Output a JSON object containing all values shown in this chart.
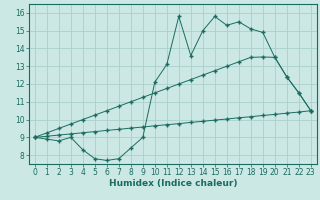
{
  "xlabel": "Humidex (Indice chaleur)",
  "ylabel": "",
  "xlim": [
    -0.5,
    23.5
  ],
  "ylim": [
    7.5,
    16.5
  ],
  "xticks": [
    0,
    1,
    2,
    3,
    4,
    5,
    6,
    7,
    8,
    9,
    10,
    11,
    12,
    13,
    14,
    15,
    16,
    17,
    18,
    19,
    20,
    21,
    22,
    23
  ],
  "yticks": [
    8,
    9,
    10,
    11,
    12,
    13,
    14,
    15,
    16
  ],
  "bg_color": "#cce8e4",
  "grid_color": "#aacfcb",
  "line_color": "#1a6b60",
  "line1_x": [
    0,
    1,
    2,
    3,
    4,
    5,
    6,
    7,
    8,
    9,
    10,
    11,
    12,
    13,
    14,
    15,
    16,
    17,
    18,
    19,
    20,
    21,
    22,
    23
  ],
  "line1_y": [
    9.0,
    8.9,
    8.8,
    9.0,
    8.3,
    7.8,
    7.7,
    7.8,
    8.4,
    9.0,
    12.1,
    13.1,
    15.8,
    13.6,
    15.0,
    15.8,
    15.3,
    15.5,
    15.1,
    14.9,
    13.5,
    12.4,
    11.5,
    10.5
  ],
  "line2_x": [
    0,
    1,
    2,
    3,
    4,
    5,
    6,
    7,
    8,
    9,
    10,
    11,
    12,
    13,
    14,
    15,
    16,
    17,
    18,
    19,
    20,
    21,
    22,
    23
  ],
  "line2_y": [
    9.0,
    9.25,
    9.5,
    9.75,
    10.0,
    10.25,
    10.5,
    10.75,
    11.0,
    11.25,
    11.5,
    11.75,
    12.0,
    12.25,
    12.5,
    12.75,
    13.0,
    13.25,
    13.5,
    13.52,
    13.5,
    12.4,
    11.5,
    10.5
  ],
  "line3_x": [
    0,
    1,
    2,
    3,
    4,
    5,
    6,
    7,
    8,
    9,
    10,
    11,
    12,
    13,
    14,
    15,
    16,
    17,
    18,
    19,
    20,
    21,
    22,
    23
  ],
  "line3_y": [
    9.0,
    9.06,
    9.13,
    9.19,
    9.26,
    9.32,
    9.39,
    9.45,
    9.52,
    9.58,
    9.65,
    9.71,
    9.77,
    9.84,
    9.9,
    9.97,
    10.03,
    10.1,
    10.16,
    10.23,
    10.29,
    10.36,
    10.42,
    10.5
  ],
  "font_color": "#1a6b60",
  "xlabel_fontsize": 6.5,
  "tick_fontsize": 5.5
}
